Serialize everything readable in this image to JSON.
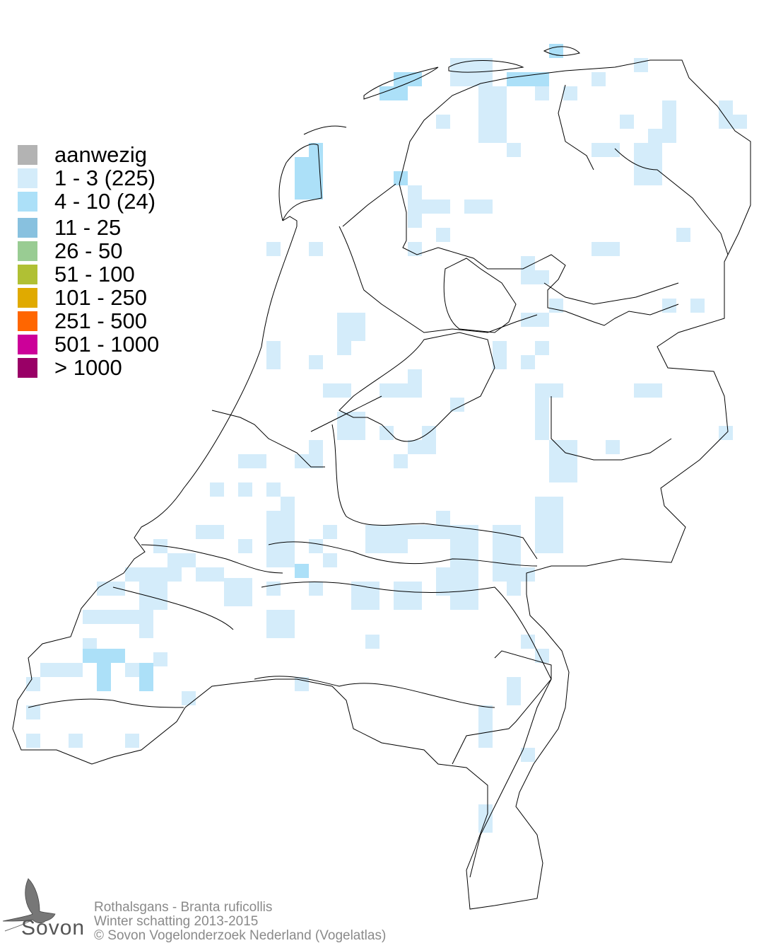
{
  "legend": {
    "items": [
      {
        "label": "aanwezig",
        "color": "#b3b3b3"
      },
      {
        "label": "1 - 3 (225)",
        "color": "#d4ecfa"
      },
      {
        "label": "4 - 10 (24)",
        "color": "#ace0f8"
      },
      {
        "label": "11 - 25",
        "color": "#88c1df"
      },
      {
        "label": "26 - 50",
        "color": "#99cc93"
      },
      {
        "label": "51 - 100",
        "color": "#b0c034"
      },
      {
        "label": "101 - 250",
        "color": "#e0aa00"
      },
      {
        "label": "251 - 500",
        "color": "#ff6600"
      },
      {
        "label": "501 - 1000",
        "color": "#cc0099"
      },
      {
        "label": "> 1000",
        "color": "#990066"
      }
    ]
  },
  "footer": {
    "species": "Rothalsgans - Branta ruficollis",
    "period": "Winter schatting 2013-2015",
    "copyright": "© Sovon Vogelonderzoek Nederland (Vogelatlas)"
  },
  "logo": {
    "text": "Sovon"
  }
}
